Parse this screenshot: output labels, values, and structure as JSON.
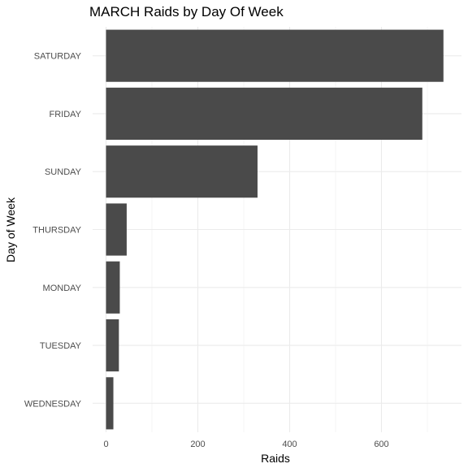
{
  "chart_data": {
    "type": "bar",
    "orientation": "horizontal",
    "title": "MARCH Raids by Day Of Week",
    "xlabel": "Raids",
    "ylabel": "Day of Week",
    "categories": [
      "SATURDAY",
      "FRIDAY",
      "SUNDAY",
      "THURSDAY",
      "MONDAY",
      "TUESDAY",
      "WEDNESDAY"
    ],
    "values": [
      735,
      689,
      330,
      45,
      30,
      28,
      16
    ],
    "xlim": [
      0,
      770
    ],
    "xticks": [
      0,
      200,
      400,
      600
    ],
    "grid": true,
    "legend": "none",
    "colors": {
      "bar": "#4a4a4a",
      "grid_major": "#ebebeb",
      "grid_minor": "#f4f4f4",
      "tick_text": "#4d4d4d"
    }
  }
}
